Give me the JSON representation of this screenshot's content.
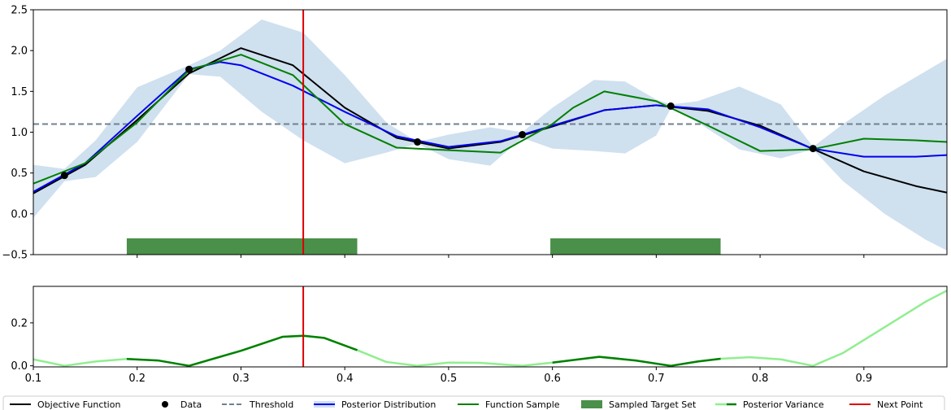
{
  "chart_data": [
    {
      "type": "line",
      "panel": "top",
      "xlim": [
        0.1,
        0.98
      ],
      "ylim": [
        -0.5,
        2.5
      ],
      "yticks": [
        -0.5,
        0.0,
        0.5,
        1.0,
        1.5,
        2.0,
        2.5
      ],
      "ytick_labels": [
        "−0.5",
        "0.0",
        "0.5",
        "1.0",
        "1.5",
        "2.0",
        "2.5"
      ],
      "xticks": [
        0.2,
        0.3,
        0.4,
        0.5,
        0.6,
        0.7,
        0.8,
        0.9
      ],
      "threshold": 1.1,
      "next_point": 0.36,
      "series": [
        {
          "name": "Objective Function",
          "color": "#000000",
          "x": [
            0.1,
            0.15,
            0.2,
            0.25,
            0.3,
            0.35,
            0.4,
            0.45,
            0.5,
            0.55,
            0.6,
            0.65,
            0.7,
            0.75,
            0.8,
            0.85,
            0.9,
            0.95,
            0.98
          ],
          "y": [
            0.25,
            0.6,
            1.15,
            1.72,
            2.03,
            1.82,
            1.3,
            0.93,
            0.8,
            0.88,
            1.07,
            1.27,
            1.33,
            1.26,
            1.08,
            0.8,
            0.52,
            0.34,
            0.26
          ]
        },
        {
          "name": "Posterior Distribution",
          "color": "#0000ee",
          "x": [
            0.1,
            0.15,
            0.2,
            0.25,
            0.28,
            0.3,
            0.35,
            0.4,
            0.45,
            0.5,
            0.55,
            0.6,
            0.65,
            0.7,
            0.75,
            0.8,
            0.85,
            0.9,
            0.95,
            0.98
          ],
          "y": [
            0.27,
            0.62,
            1.2,
            1.77,
            1.86,
            1.82,
            1.57,
            1.25,
            0.95,
            0.82,
            0.89,
            1.08,
            1.27,
            1.33,
            1.28,
            1.06,
            0.8,
            0.7,
            0.7,
            0.72
          ]
        },
        {
          "name": "Function Sample",
          "color": "#008000",
          "x": [
            0.1,
            0.15,
            0.2,
            0.25,
            0.3,
            0.35,
            0.4,
            0.45,
            0.5,
            0.55,
            0.6,
            0.62,
            0.65,
            0.7,
            0.75,
            0.8,
            0.85,
            0.9,
            0.95,
            0.98
          ],
          "y": [
            0.37,
            0.62,
            1.12,
            1.76,
            1.95,
            1.7,
            1.1,
            0.81,
            0.78,
            0.75,
            1.1,
            1.3,
            1.5,
            1.38,
            1.08,
            0.77,
            0.79,
            0.92,
            0.9,
            0.88
          ]
        }
      ],
      "data_points": {
        "name": "Data",
        "x": [
          0.13,
          0.25,
          0.47,
          0.571,
          0.714,
          0.851
        ],
        "y": [
          0.47,
          1.77,
          0.88,
          0.97,
          1.32,
          0.8
        ]
      },
      "confidence_band": {
        "x": [
          0.1,
          0.13,
          0.16,
          0.2,
          0.25,
          0.28,
          0.32,
          0.36,
          0.4,
          0.44,
          0.47,
          0.5,
          0.54,
          0.571,
          0.6,
          0.64,
          0.67,
          0.7,
          0.714,
          0.74,
          0.78,
          0.82,
          0.851,
          0.88,
          0.92,
          0.96,
          0.98
        ],
        "upper": [
          0.6,
          0.55,
          0.9,
          1.55,
          1.82,
          2.0,
          2.38,
          2.22,
          1.7,
          1.12,
          0.88,
          0.97,
          1.06,
          1.0,
          1.3,
          1.64,
          1.62,
          1.4,
          1.34,
          1.38,
          1.56,
          1.34,
          0.82,
          1.1,
          1.45,
          1.75,
          1.9
        ],
        "lower": [
          -0.05,
          0.4,
          0.45,
          0.88,
          1.71,
          1.68,
          1.25,
          0.9,
          0.62,
          0.75,
          0.86,
          0.67,
          0.59,
          0.93,
          0.8,
          0.77,
          0.74,
          0.96,
          1.29,
          1.12,
          0.79,
          0.68,
          0.79,
          0.4,
          0.0,
          -0.32,
          -0.45
        ]
      },
      "sampled_target_set": [
        [
          0.19,
          0.412
        ],
        [
          0.598,
          0.762
        ]
      ]
    },
    {
      "type": "line",
      "panel": "bottom",
      "xlim": [
        0.1,
        0.98
      ],
      "ylim": [
        -0.005,
        0.37
      ],
      "yticks": [
        0.0,
        0.2
      ],
      "ytick_labels": [
        "0.0",
        "0.2"
      ],
      "xticks": [
        0.1,
        0.2,
        0.3,
        0.4,
        0.5,
        0.6,
        0.7,
        0.8,
        0.9
      ],
      "xtick_labels": [
        "0.1",
        "0.2",
        "0.3",
        "0.4",
        "0.5",
        "0.6",
        "0.7",
        "0.8",
        "0.9"
      ],
      "next_point": 0.36,
      "series": [
        {
          "name": "Posterior Variance",
          "color": "#90ee90",
          "highlight_color": "#008000",
          "x": [
            0.1,
            0.13,
            0.16,
            0.19,
            0.22,
            0.25,
            0.3,
            0.34,
            0.36,
            0.38,
            0.412,
            0.44,
            0.47,
            0.5,
            0.53,
            0.571,
            0.6,
            0.645,
            0.68,
            0.714,
            0.74,
            0.762,
            0.79,
            0.82,
            0.851,
            0.88,
            0.92,
            0.96,
            0.98
          ],
          "y": [
            0.03,
            0.0,
            0.02,
            0.032,
            0.025,
            0.0,
            0.07,
            0.135,
            0.14,
            0.13,
            0.073,
            0.018,
            0.0,
            0.015,
            0.014,
            0.0,
            0.015,
            0.042,
            0.025,
            0.0,
            0.02,
            0.033,
            0.04,
            0.03,
            0.0,
            0.06,
            0.18,
            0.3,
            0.35
          ]
        }
      ]
    }
  ],
  "legend": [
    {
      "label": "Objective Function",
      "kind": "line",
      "color": "#000000"
    },
    {
      "label": "Data",
      "kind": "marker",
      "color": "#000000"
    },
    {
      "label": "Threshold",
      "kind": "dashed",
      "color": "#708090"
    },
    {
      "label": "Posterior Distribution",
      "kind": "band-line",
      "color": "#0000ee"
    },
    {
      "label": "Function Sample",
      "kind": "line",
      "color": "#008000"
    },
    {
      "label": "Sampled Target Set",
      "kind": "patch",
      "color": "#4a8f4a"
    },
    {
      "label": "Posterior Variance",
      "kind": "twoline",
      "color": "#90ee90"
    },
    {
      "label": "Next Point",
      "kind": "line",
      "color": "#dd0000"
    }
  ],
  "colors": {
    "band": "#cfe0ef",
    "threshold": "#708090",
    "next_point": "#dd0000",
    "target_set": "#4a8f4a"
  }
}
